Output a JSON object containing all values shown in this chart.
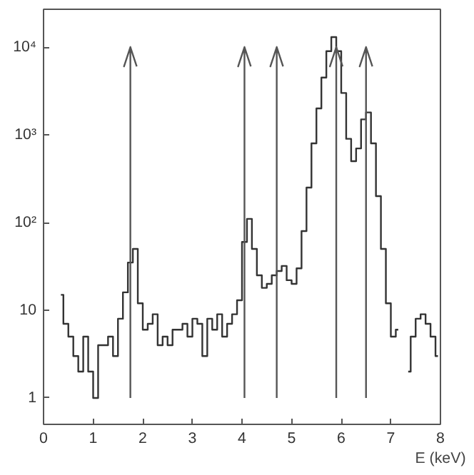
{
  "chart_data": {
    "type": "step",
    "xlabel": "E (keV)",
    "color": "#333333",
    "log": "y",
    "grid": false,
    "x": [
      0.35,
      0.45,
      0.55,
      0.65,
      0.75,
      0.85,
      0.95,
      1.05,
      1.15,
      1.25,
      1.35,
      1.45,
      1.55,
      1.65,
      1.75,
      1.85,
      1.95,
      2.05,
      2.15,
      2.25,
      2.35,
      2.45,
      2.55,
      2.65,
      2.75,
      2.85,
      2.95,
      3.05,
      3.15,
      3.25,
      3.35,
      3.45,
      3.55,
      3.65,
      3.75,
      3.85,
      3.95,
      4.05,
      4.15,
      4.25,
      4.35,
      4.45,
      4.55,
      4.65,
      4.75,
      4.85,
      4.95,
      5.05,
      5.15,
      5.25,
      5.35,
      5.45,
      5.55,
      5.65,
      5.75,
      5.85,
      5.95,
      6.05,
      6.15,
      6.25,
      6.35,
      6.45,
      6.55,
      6.65,
      6.75,
      6.85,
      6.95,
      7.05,
      7.15,
      7.25,
      7.35,
      7.45,
      7.55,
      7.65,
      7.75,
      7.85,
      7.95
    ],
    "values": [
      15,
      7,
      5,
      3,
      2,
      5,
      2,
      1,
      4,
      4,
      5,
      3,
      8,
      16,
      35,
      50,
      12,
      6,
      7,
      9,
      4,
      5,
      4,
      6,
      6,
      7,
      5,
      8,
      7,
      3,
      8,
      6,
      9,
      5,
      7,
      9,
      13,
      60,
      110,
      50,
      25,
      18,
      20,
      25,
      28,
      32,
      22,
      20,
      30,
      80,
      250,
      800,
      2000,
      4500,
      9000,
      13000,
      9000,
      3000,
      900,
      500,
      700,
      1500,
      1800,
      800,
      200,
      50,
      12,
      5,
      6,
      null,
      2,
      5,
      8,
      9,
      7,
      5,
      3
    ],
    "xlim": [
      0,
      8
    ],
    "xticks": [
      0,
      1,
      2,
      3,
      4,
      5,
      6,
      7,
      8
    ],
    "ylim": [
      0.5,
      27000
    ],
    "yticks": [
      1,
      10,
      {
        "value": 100,
        "label": "10²"
      },
      {
        "value": 1000,
        "label": "10³"
      },
      {
        "value": 10000,
        "label": "10⁴"
      }
    ],
    "ref_lines": [
      {
        "axis": "x",
        "value": 1.75,
        "color": "#555555"
      },
      {
        "axis": "x",
        "value": 4.05,
        "color": "#555555"
      },
      {
        "axis": "x",
        "value": 4.7,
        "color": "#555555"
      },
      {
        "axis": "x",
        "value": 5.9,
        "color": "#555555"
      },
      {
        "axis": "x",
        "value": 6.5,
        "color": "#555555"
      }
    ]
  }
}
